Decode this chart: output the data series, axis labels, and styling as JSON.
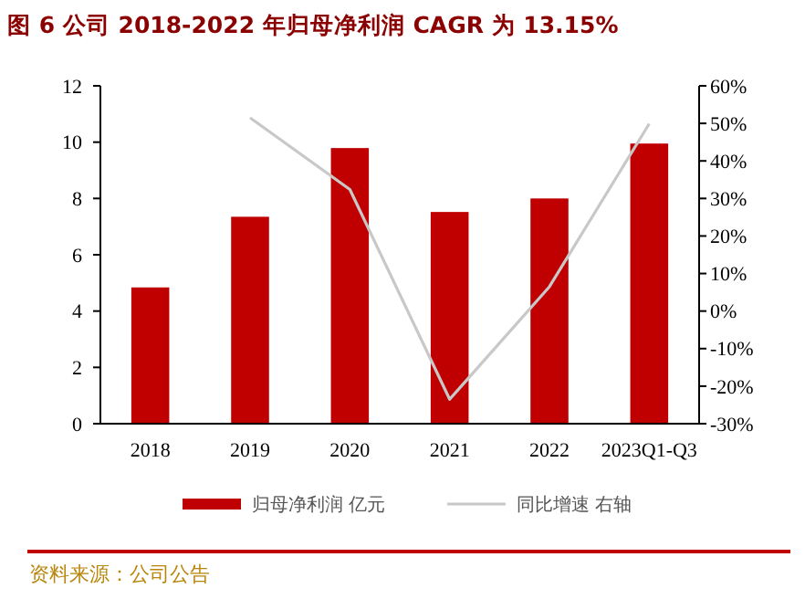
{
  "chart_data": {
    "type": "bar",
    "title": "图 6 公司 2018-2022 年归母净利润 CAGR 为 13.15%",
    "categories": [
      "2018",
      "2019",
      "2020",
      "2021",
      "2022",
      "2023Q1-Q3"
    ],
    "series": [
      {
        "name": "归母净利润 亿元",
        "color": "#c00000",
        "values": [
          4.84,
          7.35,
          9.79,
          7.52,
          8.0,
          9.95
        ]
      },
      {
        "name": "同比增速 右轴",
        "type": "line",
        "axis": "y2",
        "color": "#c8c8c8",
        "values": [
          null,
          51.5,
          32.4,
          -23.5,
          6.5,
          49.9
        ]
      }
    ],
    "ylim": [
      0,
      12
    ],
    "yticks": [
      0,
      2,
      4,
      6,
      8,
      10,
      12
    ],
    "y2lim": [
      -30,
      60
    ],
    "y2ticks": [
      {
        "value": -30,
        "label": "-30%"
      },
      {
        "value": -20,
        "label": "-20%"
      },
      {
        "value": -10,
        "label": "-10%"
      },
      {
        "value": 0,
        "label": "0%"
      },
      {
        "value": 10,
        "label": "10%"
      },
      {
        "value": 20,
        "label": "20%"
      },
      {
        "value": 30,
        "label": "30%"
      },
      {
        "value": 40,
        "label": "40%"
      },
      {
        "value": 50,
        "label": "50%"
      },
      {
        "value": 60,
        "label": "60%"
      }
    ],
    "legend": "bottom",
    "grid": false,
    "annotations": [
      "资料来源：公司公告"
    ]
  }
}
